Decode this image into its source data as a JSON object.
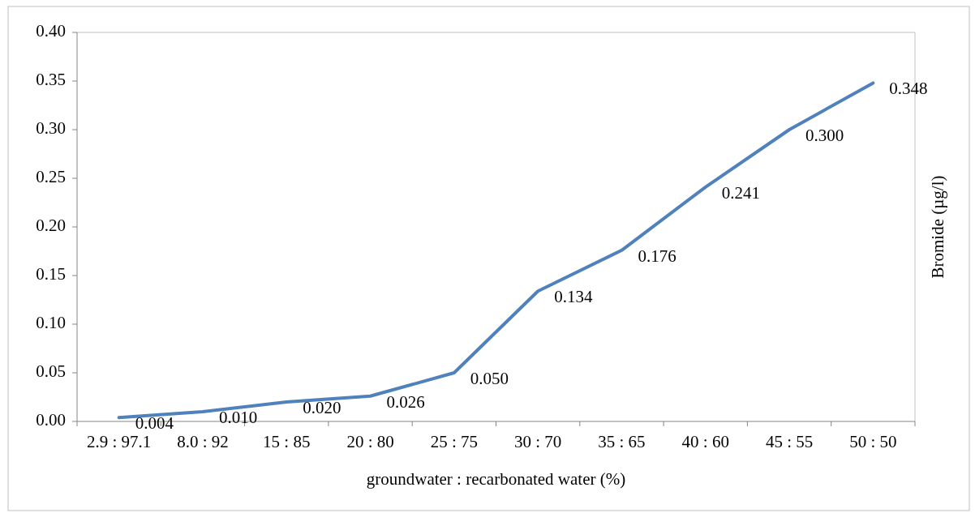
{
  "chart_data": {
    "type": "line",
    "xlabel": "groundwater : recarbonated water (%)",
    "ylabel": "Bromide (µg/l)",
    "categories": [
      "2.9 : 97.1",
      "8.0 : 92",
      "15 : 85",
      "20 : 80",
      "25 : 75",
      "30 : 70",
      "35 : 65",
      "40 : 60",
      "45 : 55",
      "50 : 50"
    ],
    "series": [
      {
        "color": "#4f81bd",
        "values": [
          0.004,
          0.01,
          0.02,
          0.026,
          0.05,
          0.134,
          0.176,
          0.241,
          0.3,
          0.348
        ],
        "value_labels": [
          "0.004",
          "0.010",
          "0.020",
          "0.026",
          "0.050",
          "0.134",
          "0.176",
          "0.241",
          "0.300",
          "0.348"
        ]
      }
    ],
    "ylim": [
      0,
      0.4
    ],
    "yticks": [
      {
        "value": 0,
        "label": "0.00"
      },
      {
        "value": 0.05,
        "label": "0.05"
      },
      {
        "value": 0.1,
        "label": "0.10"
      },
      {
        "value": 0.15,
        "label": "0.15"
      },
      {
        "value": 0.2,
        "label": "0.20"
      },
      {
        "value": 0.25,
        "label": "0.25"
      },
      {
        "value": 0.3,
        "label": "0.30"
      },
      {
        "value": 0.35,
        "label": "0.35"
      },
      {
        "value": 0.4,
        "label": "0.40"
      }
    ],
    "grid": false,
    "marker": "none",
    "line_style": "solid"
  }
}
